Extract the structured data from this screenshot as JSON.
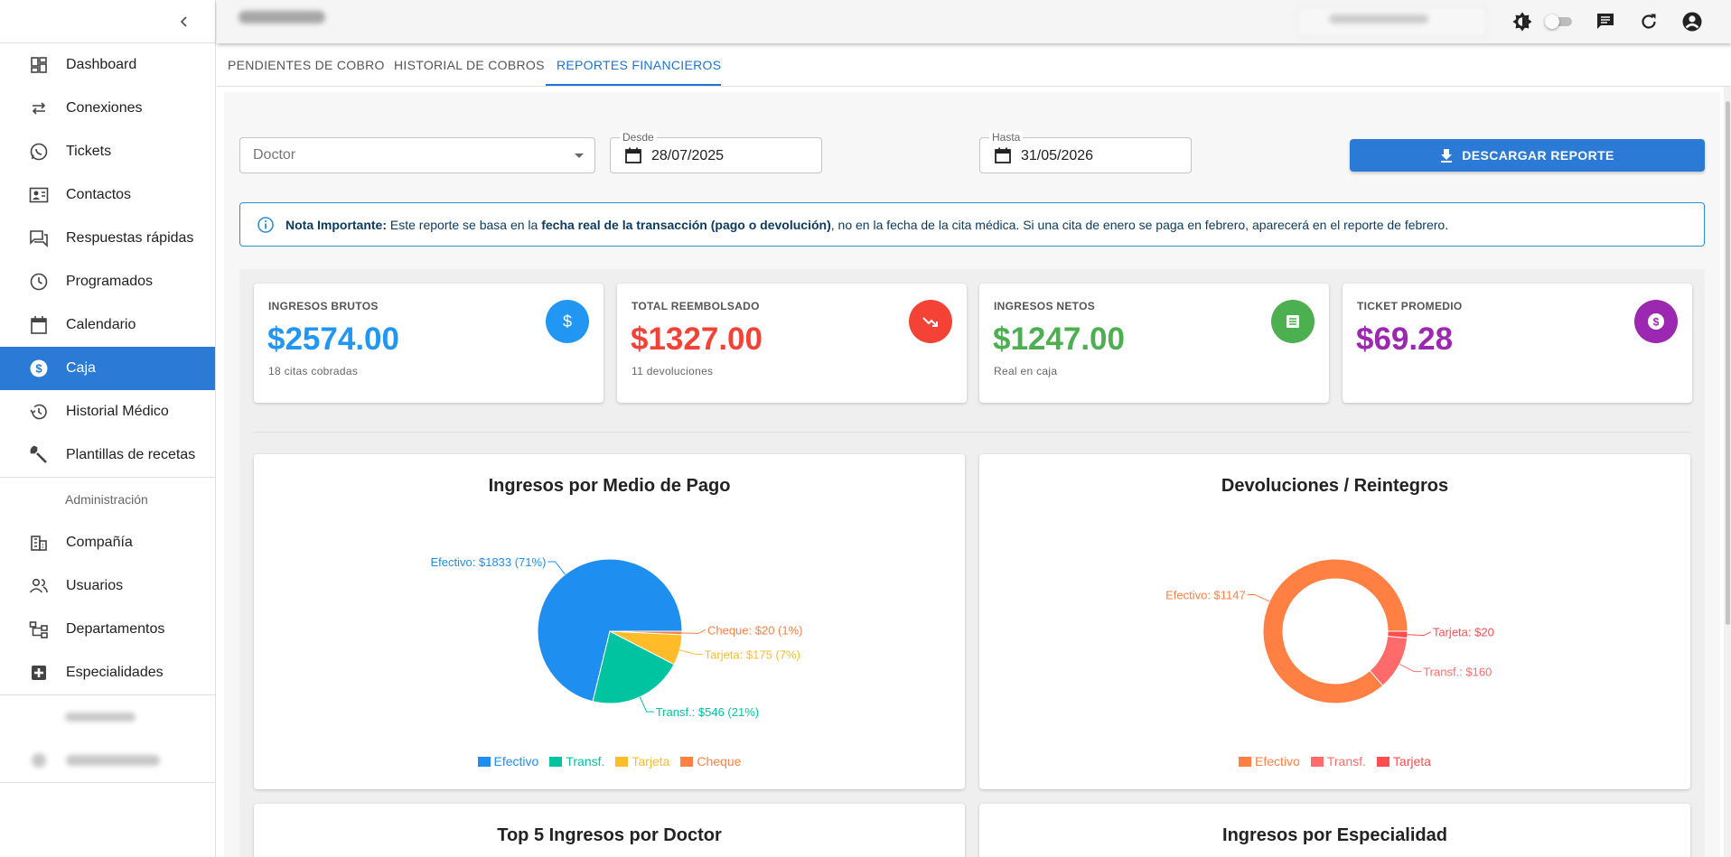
{
  "sidebar": {
    "items": [
      {
        "label": "Dashboard",
        "icon": "dashboard-icon"
      },
      {
        "label": "Conexiones",
        "icon": "sync-alt-icon"
      },
      {
        "label": "Tickets",
        "icon": "whatsapp-icon"
      },
      {
        "label": "Contactos",
        "icon": "contact-card-icon"
      },
      {
        "label": "Respuestas rápidas",
        "icon": "forum-icon"
      },
      {
        "label": "Programados",
        "icon": "clock-icon"
      },
      {
        "label": "Calendario",
        "icon": "calendar-icon"
      },
      {
        "label": "Caja",
        "icon": "dollar-circle-icon"
      },
      {
        "label": "Historial Médico",
        "icon": "history-icon"
      },
      {
        "label": "Plantillas de recetas",
        "icon": "wrench-icon"
      }
    ],
    "admin_heading": "Administración",
    "admin_items": [
      {
        "label": "Compañía",
        "icon": "building-icon"
      },
      {
        "label": "Usuarios",
        "icon": "people-icon"
      },
      {
        "label": "Departamentos",
        "icon": "hierarchy-icon"
      },
      {
        "label": "Especialidades",
        "icon": "medical-plus-icon"
      }
    ]
  },
  "topbar": {
    "icons": [
      "brightness-icon",
      "dark-mode-toggle",
      "chat-icon",
      "refresh-icon",
      "account-icon"
    ]
  },
  "tabs": [
    {
      "label": "PENDIENTES DE COBRO"
    },
    {
      "label": "HISTORIAL DE COBROS"
    },
    {
      "label": "REPORTES FINANCIEROS"
    }
  ],
  "filters": {
    "doctor_placeholder": "Doctor",
    "desde_label": "Desde",
    "desde_value": "28/07/2025",
    "hasta_label": "Hasta",
    "hasta_value": "31/05/2026",
    "download_label": "DESCARGAR REPORTE"
  },
  "note": {
    "bold_lead": "Nota Importante:",
    "text_1": " Este reporte se basa en la ",
    "bold_mid": "fecha real de la transacción (pago o devolución)",
    "text_2": ", no en la fecha de la cita médica. Si una cita de enero se paga en febrero, aparecerá en el reporte de febrero."
  },
  "cards": [
    {
      "title": "INGRESOS BRUTOS",
      "value": "$2574.00",
      "sub": "18 citas cobradas",
      "color": "#2196f3",
      "icon": "dollar-icon"
    },
    {
      "title": "TOTAL REEMBOLSADO",
      "value": "$1327.00",
      "sub": "11 devoluciones",
      "color": "#f44336",
      "icon": "trending-down-icon"
    },
    {
      "title": "INGRESOS NETOS",
      "value": "$1247.00",
      "sub": "Real en caja",
      "color": "#4caf50",
      "icon": "receipt-icon"
    },
    {
      "title": "TICKET PROMEDIO",
      "value": "$69.28",
      "sub": "",
      "color": "#9c27b0",
      "icon": "coin-icon"
    }
  ],
  "panels": {
    "bottom_left_title": "Top 5 Ingresos por Doctor",
    "bottom_right_title": "Ingresos por Especialidad"
  },
  "chart_data": [
    {
      "type": "pie",
      "title": "Ingresos por Medio de Pago",
      "categories": [
        "Efectivo",
        "Transf.",
        "Tarjeta",
        "Cheque"
      ],
      "values": [
        1833,
        546,
        175,
        20
      ],
      "labels": [
        "Efectivo: $1833 (71%)",
        "Transf.: $546 (21%)",
        "Tarjeta: $175 (7%)",
        "Cheque: $20 (1%)"
      ],
      "legend": [
        "Efectivo",
        "Transf.",
        "Tarjeta",
        "Cheque"
      ],
      "colors": [
        "#1f8ef1",
        "#00c49f",
        "#ffbb28",
        "#ff8042"
      ],
      "legend_position": "bottom"
    },
    {
      "type": "pie",
      "title": "Devoluciones / Reintegros",
      "donut": true,
      "categories": [
        "Efectivo",
        "Transf.",
        "Tarjeta"
      ],
      "values": [
        1147,
        160,
        20
      ],
      "labels": [
        "Efectivo: $1147",
        "Transf.: $160",
        "Tarjeta: $20"
      ],
      "legend": [
        "Efectivo",
        "Transf.",
        "Tarjeta"
      ],
      "colors": [
        "#ff8042",
        "#ff6b6b",
        "#ff4d4f"
      ],
      "legend_position": "bottom"
    }
  ]
}
